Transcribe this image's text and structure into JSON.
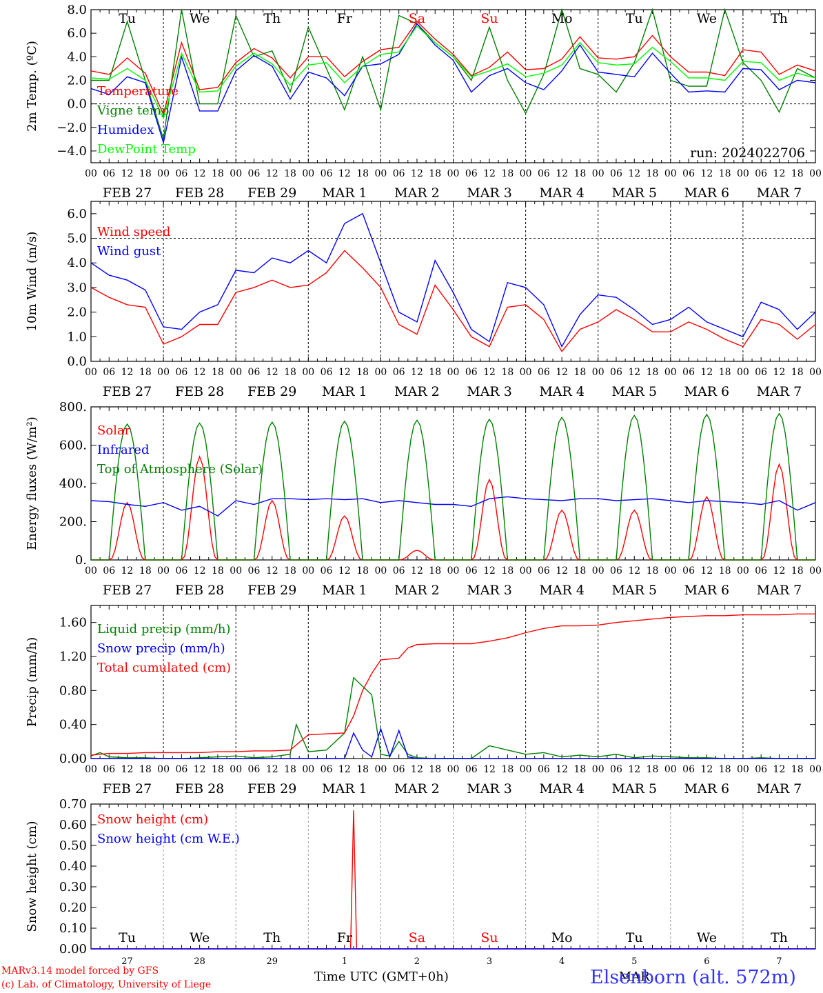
{
  "run_label": "run: 2024022706",
  "hour_ticks": [
    "00",
    "06",
    "12",
    "18"
  ],
  "date_labels": [
    "FEB 27",
    "FEB 28",
    "FEB 29",
    "MAR  1",
    "MAR  2",
    "MAR  3",
    "MAR  4",
    "MAR  5",
    "MAR  6",
    "MAR  7"
  ],
  "weekdays": [
    "Tu",
    "We",
    "Th",
    "Fr",
    "Sa",
    "Su",
    "Mo",
    "Tu",
    "We",
    "Th"
  ],
  "weekend_color": "#ff0000",
  "bottom_day_numbers": [
    "27",
    "28",
    "29",
    "1",
    "2",
    "3",
    "4",
    "5",
    "6",
    "7"
  ],
  "bottom_month_label": "MAR",
  "footer": {
    "model": "MARv3.14 model forced by GFS",
    "lab": "(c) Lab. of Climatology, University of Liege",
    "xlabel": "Time UTC (GMT+0h)",
    "station": "Elsenborn (alt. 572m)"
  },
  "chart_data": [
    {
      "type": "line",
      "ylabel": "2m Temp. (ºC)",
      "ylim": [
        -5,
        8
      ],
      "yticks": [
        "8.0",
        "6.0",
        "4.0",
        "2.0",
        "0.0",
        "−2.0",
        "−4.0"
      ],
      "x_unit": "hours since FEB 27 00 UTC",
      "series": [
        {
          "name": "Temperature",
          "color": "#ff0000",
          "x": [
            0,
            6,
            12,
            18,
            24,
            30,
            36,
            42,
            48,
            54,
            60,
            66,
            72,
            78,
            84,
            90,
            96,
            102,
            108,
            114,
            120,
            126,
            132,
            138,
            144,
            150,
            156,
            162,
            168,
            174,
            180,
            186,
            192,
            198,
            204,
            210,
            216,
            222,
            228,
            234,
            240
          ],
          "values": [
            2.8,
            2.5,
            3.9,
            2.6,
            -0.9,
            5.2,
            1.2,
            1.4,
            3.5,
            4.7,
            3.9,
            2.2,
            4.0,
            4.0,
            2.3,
            3.6,
            4.6,
            4.8,
            7.0,
            5.5,
            4.2,
            2.4,
            3.1,
            4.4,
            2.9,
            3.0,
            3.8,
            5.7,
            3.9,
            3.8,
            4.0,
            5.8,
            4.0,
            2.7,
            2.7,
            2.4,
            4.6,
            4.4,
            2.5,
            3.3,
            2.8
          ]
        },
        {
          "name": "Vigne temp",
          "color": "#008000",
          "x": [
            0,
            6,
            12,
            18,
            24,
            30,
            36,
            42,
            48,
            54,
            60,
            66,
            72,
            78,
            84,
            90,
            96,
            102,
            108,
            114,
            120,
            126,
            132,
            138,
            144,
            150,
            156,
            162,
            168,
            174,
            180,
            186,
            192,
            198,
            204,
            210,
            216,
            222,
            228,
            234,
            240
          ],
          "values": [
            2.0,
            2.0,
            7.0,
            2.0,
            -3.0,
            8.0,
            0.0,
            0.0,
            7.5,
            4.0,
            4.5,
            1.0,
            6.5,
            3.0,
            -0.5,
            4.0,
            -0.5,
            7.5,
            6.8,
            5.2,
            4.0,
            2.0,
            6.5,
            2.0,
            -0.8,
            2.5,
            8.0,
            3.0,
            2.5,
            1.0,
            3.5,
            8.0,
            2.0,
            1.5,
            1.5,
            8.0,
            3.5,
            2.0,
            -0.7,
            3.0,
            2.2
          ]
        },
        {
          "name": "Humidex",
          "color": "#0000ff",
          "x": [
            0,
            6,
            12,
            18,
            24,
            30,
            36,
            42,
            48,
            54,
            60,
            66,
            72,
            78,
            84,
            90,
            96,
            102,
            108,
            114,
            120,
            126,
            132,
            138,
            144,
            150,
            156,
            162,
            168,
            174,
            180,
            186,
            192,
            198,
            204,
            210,
            216,
            222,
            228,
            234,
            240
          ],
          "values": [
            1.3,
            0.8,
            2.3,
            1.8,
            -3.3,
            4.0,
            -0.6,
            -0.6,
            2.8,
            4.1,
            3.2,
            0.4,
            2.7,
            2.2,
            0.7,
            3.2,
            3.4,
            4.2,
            6.8,
            5.0,
            3.7,
            1.0,
            2.4,
            3.0,
            1.8,
            1.2,
            2.8,
            5.0,
            2.7,
            2.5,
            2.3,
            4.3,
            2.6,
            1.0,
            1.1,
            1.0,
            3.0,
            2.9,
            1.2,
            2.0,
            1.8
          ]
        },
        {
          "name": "DewPoint Temp",
          "color": "#00ff00",
          "x": [
            0,
            6,
            12,
            18,
            24,
            30,
            36,
            42,
            48,
            54,
            60,
            66,
            72,
            78,
            84,
            90,
            96,
            102,
            108,
            114,
            120,
            126,
            132,
            138,
            144,
            150,
            156,
            162,
            168,
            174,
            180,
            186,
            192,
            198,
            204,
            210,
            216,
            222,
            228,
            234,
            240
          ],
          "values": [
            2.2,
            2.1,
            3.0,
            2.0,
            -1.2,
            4.3,
            1.0,
            1.1,
            3.2,
            4.3,
            3.4,
            1.6,
            3.3,
            3.5,
            1.8,
            3.2,
            4.2,
            4.4,
            6.6,
            5.2,
            4.0,
            2.3,
            2.8,
            3.4,
            2.3,
            2.6,
            3.3,
            5.2,
            3.5,
            3.3,
            3.4,
            4.8,
            3.6,
            2.2,
            2.2,
            2.0,
            3.6,
            3.5,
            2.0,
            2.6,
            2.2
          ]
        }
      ]
    },
    {
      "type": "line",
      "ylabel": "10m Wind (m/s)",
      "ylim": [
        0,
        6.5
      ],
      "yticks": [
        "6.0",
        "5.0",
        "4.0",
        "3.0",
        "2.0",
        "1.0",
        "0.0"
      ],
      "series": [
        {
          "name": "Wind speed",
          "color": "#ff0000",
          "x": [
            0,
            6,
            12,
            18,
            24,
            30,
            36,
            42,
            48,
            54,
            60,
            66,
            72,
            78,
            84,
            90,
            96,
            102,
            108,
            114,
            120,
            126,
            132,
            138,
            144,
            150,
            156,
            162,
            168,
            174,
            180,
            186,
            192,
            198,
            204,
            210,
            216,
            222,
            228,
            234,
            240
          ],
          "values": [
            3.0,
            2.6,
            2.3,
            2.2,
            0.7,
            1.0,
            1.5,
            1.5,
            2.8,
            3.0,
            3.3,
            3.0,
            3.1,
            3.6,
            4.5,
            3.8,
            3.0,
            1.5,
            1.1,
            3.1,
            2.1,
            1.0,
            0.6,
            2.2,
            2.3,
            1.7,
            0.4,
            1.3,
            1.6,
            2.1,
            1.7,
            1.2,
            1.2,
            1.6,
            1.3,
            0.9,
            0.6,
            1.7,
            1.5,
            0.9,
            1.5
          ]
        },
        {
          "name": "Wind gust",
          "color": "#0000ff",
          "x": [
            0,
            6,
            12,
            18,
            24,
            30,
            36,
            42,
            48,
            54,
            60,
            66,
            72,
            78,
            84,
            90,
            96,
            102,
            108,
            114,
            120,
            126,
            132,
            138,
            144,
            150,
            156,
            162,
            168,
            174,
            180,
            186,
            192,
            198,
            204,
            210,
            216,
            222,
            228,
            234,
            240
          ],
          "values": [
            4.0,
            3.5,
            3.3,
            2.9,
            1.4,
            1.3,
            2.0,
            2.3,
            3.7,
            3.6,
            4.2,
            4.0,
            4.5,
            4.0,
            5.6,
            6.0,
            4.0,
            2.0,
            1.6,
            4.1,
            2.8,
            1.3,
            0.8,
            3.2,
            3.0,
            2.3,
            0.6,
            1.9,
            2.7,
            2.6,
            2.1,
            1.5,
            1.7,
            2.2,
            1.6,
            1.3,
            1.0,
            2.4,
            2.1,
            1.3,
            2.0
          ]
        }
      ]
    },
    {
      "type": "line",
      "ylabel": "Energy fluxes (W/m²)",
      "ylim": [
        0,
        800
      ],
      "yticks": [
        "800.",
        "600.",
        "400.",
        "200.",
        "0."
      ],
      "series": [
        {
          "name": "Solar",
          "color": "#ff0000",
          "peaks": [
            300,
            540,
            310,
            230,
            50,
            420,
            260,
            260,
            330,
            500
          ]
        },
        {
          "name": "Infrared",
          "color": "#0000ff",
          "x": [
            0,
            6,
            12,
            18,
            24,
            30,
            36,
            42,
            48,
            54,
            60,
            66,
            72,
            78,
            84,
            90,
            96,
            102,
            108,
            114,
            120,
            126,
            132,
            138,
            144,
            150,
            156,
            162,
            168,
            174,
            180,
            186,
            192,
            198,
            204,
            210,
            216,
            222,
            228,
            234,
            240
          ],
          "values": [
            310,
            305,
            290,
            280,
            300,
            260,
            280,
            230,
            310,
            290,
            320,
            320,
            315,
            320,
            315,
            320,
            300,
            310,
            300,
            290,
            290,
            280,
            320,
            330,
            320,
            315,
            310,
            320,
            320,
            310,
            315,
            320,
            310,
            300,
            310,
            305,
            300,
            290,
            310,
            260,
            300
          ]
        },
        {
          "name": "Top of Atmosphere (Solar)",
          "color": "#008000",
          "peaks": [
            710,
            715,
            720,
            725,
            730,
            735,
            745,
            755,
            760,
            765
          ]
        }
      ]
    },
    {
      "type": "line",
      "ylabel": "Precip (mm/h)",
      "ylim": [
        0,
        1.8
      ],
      "yticks": [
        "1.60",
        "1.20",
        "0.80",
        "0.40",
        "0.00"
      ],
      "series": [
        {
          "name": "Liquid precip (mm/h)",
          "color": "#008000",
          "x": [
            0,
            3,
            6,
            12,
            18,
            24,
            30,
            36,
            42,
            48,
            54,
            60,
            66,
            68,
            72,
            78,
            84,
            87,
            90,
            93,
            96,
            99,
            102,
            105,
            108,
            114,
            120,
            126,
            132,
            138,
            144,
            150,
            156,
            162,
            168,
            174,
            180,
            186,
            192,
            198,
            204,
            210,
            216,
            222,
            228,
            234,
            240
          ],
          "values": [
            0.03,
            0.07,
            0.02,
            0.01,
            0.01,
            0.0,
            0.0,
            0.01,
            0.02,
            0.03,
            0.01,
            0.02,
            0.05,
            0.4,
            0.08,
            0.1,
            0.3,
            0.95,
            0.85,
            0.75,
            0.05,
            0.03,
            0.2,
            0.05,
            0.01,
            0.0,
            0.0,
            0.0,
            0.15,
            0.1,
            0.05,
            0.07,
            0.02,
            0.04,
            0.02,
            0.05,
            0.01,
            0.03,
            0.02,
            0.01,
            0.01,
            0.0,
            0.0,
            0.01,
            0.0,
            0.0,
            0.0
          ]
        },
        {
          "name": "Snow precip (mm/h)",
          "color": "#0000ff",
          "x": [
            0,
            6,
            12,
            18,
            24,
            30,
            36,
            42,
            48,
            54,
            60,
            66,
            72,
            78,
            84,
            87,
            90,
            93,
            96,
            99,
            102,
            105,
            108,
            114,
            120,
            126,
            132,
            138,
            144,
            150,
            156,
            162,
            168,
            174,
            180,
            186,
            192,
            198,
            204,
            210,
            216,
            222,
            228,
            234,
            240
          ],
          "values": [
            0.0,
            0.0,
            0.0,
            0.0,
            0.0,
            0.0,
            0.0,
            0.0,
            0.0,
            0.0,
            0.0,
            0.0,
            0.0,
            0.0,
            0.0,
            0.3,
            0.1,
            0.02,
            0.35,
            0.02,
            0.33,
            0.02,
            0.0,
            0.0,
            0.0,
            0.0,
            0.0,
            0.0,
            0.0,
            0.0,
            0.0,
            0.0,
            0.0,
            0.0,
            0.0,
            0.0,
            0.0,
            0.0,
            0.0,
            0.0,
            0.0,
            0.0,
            0.0,
            0.0,
            0.0
          ]
        },
        {
          "name": "Total cumulated (cm)",
          "color": "#ff0000",
          "x": [
            0,
            6,
            12,
            18,
            24,
            30,
            36,
            42,
            48,
            54,
            60,
            66,
            72,
            78,
            84,
            87,
            90,
            93,
            96,
            99,
            102,
            105,
            108,
            114,
            120,
            126,
            132,
            138,
            144,
            150,
            156,
            162,
            168,
            174,
            180,
            186,
            192,
            198,
            204,
            210,
            216,
            222,
            228,
            234,
            240
          ],
          "values": [
            0.04,
            0.06,
            0.06,
            0.07,
            0.07,
            0.07,
            0.07,
            0.08,
            0.08,
            0.09,
            0.09,
            0.1,
            0.28,
            0.29,
            0.3,
            0.5,
            0.8,
            1.0,
            1.16,
            1.17,
            1.18,
            1.3,
            1.34,
            1.35,
            1.35,
            1.35,
            1.38,
            1.42,
            1.48,
            1.53,
            1.56,
            1.56,
            1.57,
            1.6,
            1.62,
            1.64,
            1.66,
            1.67,
            1.68,
            1.68,
            1.69,
            1.69,
            1.69,
            1.7,
            1.7
          ]
        }
      ]
    },
    {
      "type": "line",
      "ylabel": "Snow height (cm)",
      "ylim": [
        0,
        0.7
      ],
      "yticks": [
        "0.70",
        "0.60",
        "0.50",
        "0.40",
        "0.30",
        "0.20",
        "0.10",
        "0.00"
      ],
      "series": [
        {
          "name": "Snow height (cm)",
          "color": "#ff0000",
          "x": [
            0,
            86,
            87,
            88,
            240
          ],
          "values": [
            0,
            0,
            0.67,
            0,
            0
          ]
        },
        {
          "name": "Snow height (cm W.E.)",
          "color": "#0000ff",
          "x": [
            0,
            240
          ],
          "values": [
            0,
            0
          ]
        }
      ]
    }
  ]
}
